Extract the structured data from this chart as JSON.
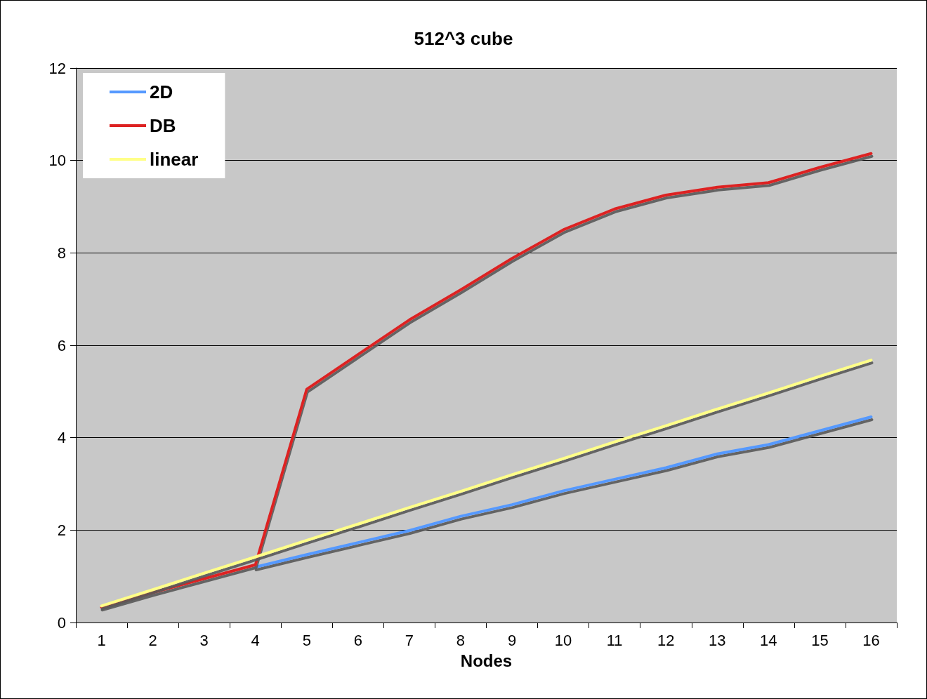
{
  "chart_data": {
    "type": "line",
    "title": "512^3 cube",
    "xlabel": "Nodes",
    "categories": [
      "1",
      "2",
      "3",
      "4",
      "5",
      "6",
      "7",
      "8",
      "9",
      "10",
      "11",
      "12",
      "13",
      "14",
      "15",
      "16"
    ],
    "series": [
      {
        "name": "2D",
        "color": "#5599ff",
        "values": [
          null,
          null,
          null,
          1.2,
          1.47,
          1.73,
          1.99,
          2.3,
          2.55,
          2.85,
          3.1,
          3.35,
          3.65,
          3.85,
          4.15,
          4.45
        ]
      },
      {
        "name": "DB",
        "color": "#dd2222",
        "values": [
          0.33,
          0.65,
          0.95,
          1.25,
          5.05,
          5.8,
          6.55,
          7.2,
          7.88,
          8.5,
          8.95,
          9.25,
          9.42,
          9.52,
          9.85,
          10.15
        ]
      },
      {
        "name": "linear",
        "color": "#ffff88",
        "values": [
          0.36,
          0.71,
          1.07,
          1.42,
          1.78,
          2.13,
          2.49,
          2.84,
          3.2,
          3.55,
          3.91,
          4.26,
          4.62,
          4.97,
          5.33,
          5.68
        ]
      }
    ],
    "ylim": [
      0,
      12
    ],
    "yticks": [
      0,
      2,
      4,
      6,
      8,
      10,
      12
    ],
    "grid": "y",
    "legend": "top left",
    "marker": "none",
    "line_style": "solid"
  }
}
